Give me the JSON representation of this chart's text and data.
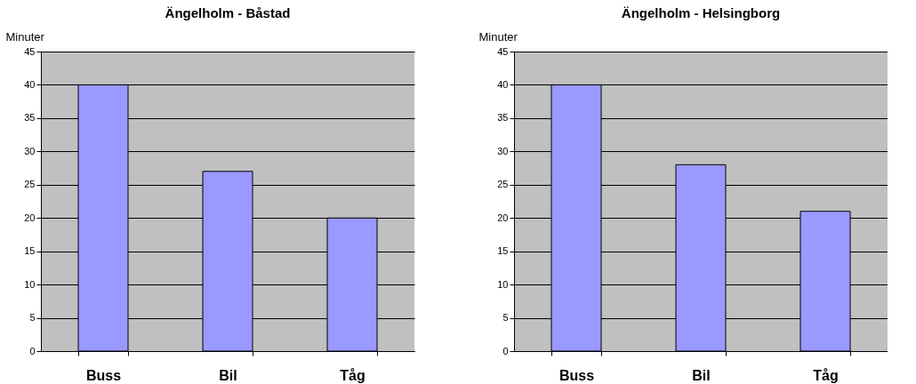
{
  "chart_data": [
    {
      "type": "bar",
      "title": "Ängelholm - Båstad",
      "ylabel": "Minuter",
      "categories": [
        "Buss",
        "Bil",
        "Tåg"
      ],
      "values": [
        40,
        27,
        20
      ],
      "color": "#9999ff",
      "ylim": [
        0,
        45
      ],
      "yticks": [
        0,
        5,
        10,
        15,
        20,
        25,
        30,
        35,
        40,
        45
      ],
      "grid": "y"
    },
    {
      "type": "bar",
      "title": "Ängelholm - Helsingborg",
      "ylabel": "Minuter",
      "categories": [
        "Buss",
        "Bil",
        "Tåg"
      ],
      "values": [
        40,
        28,
        21
      ],
      "color": "#9999ff",
      "ylim": [
        0,
        45
      ],
      "yticks": [
        0,
        5,
        10,
        15,
        20,
        25,
        30,
        35,
        40,
        45
      ],
      "grid": "y"
    }
  ]
}
